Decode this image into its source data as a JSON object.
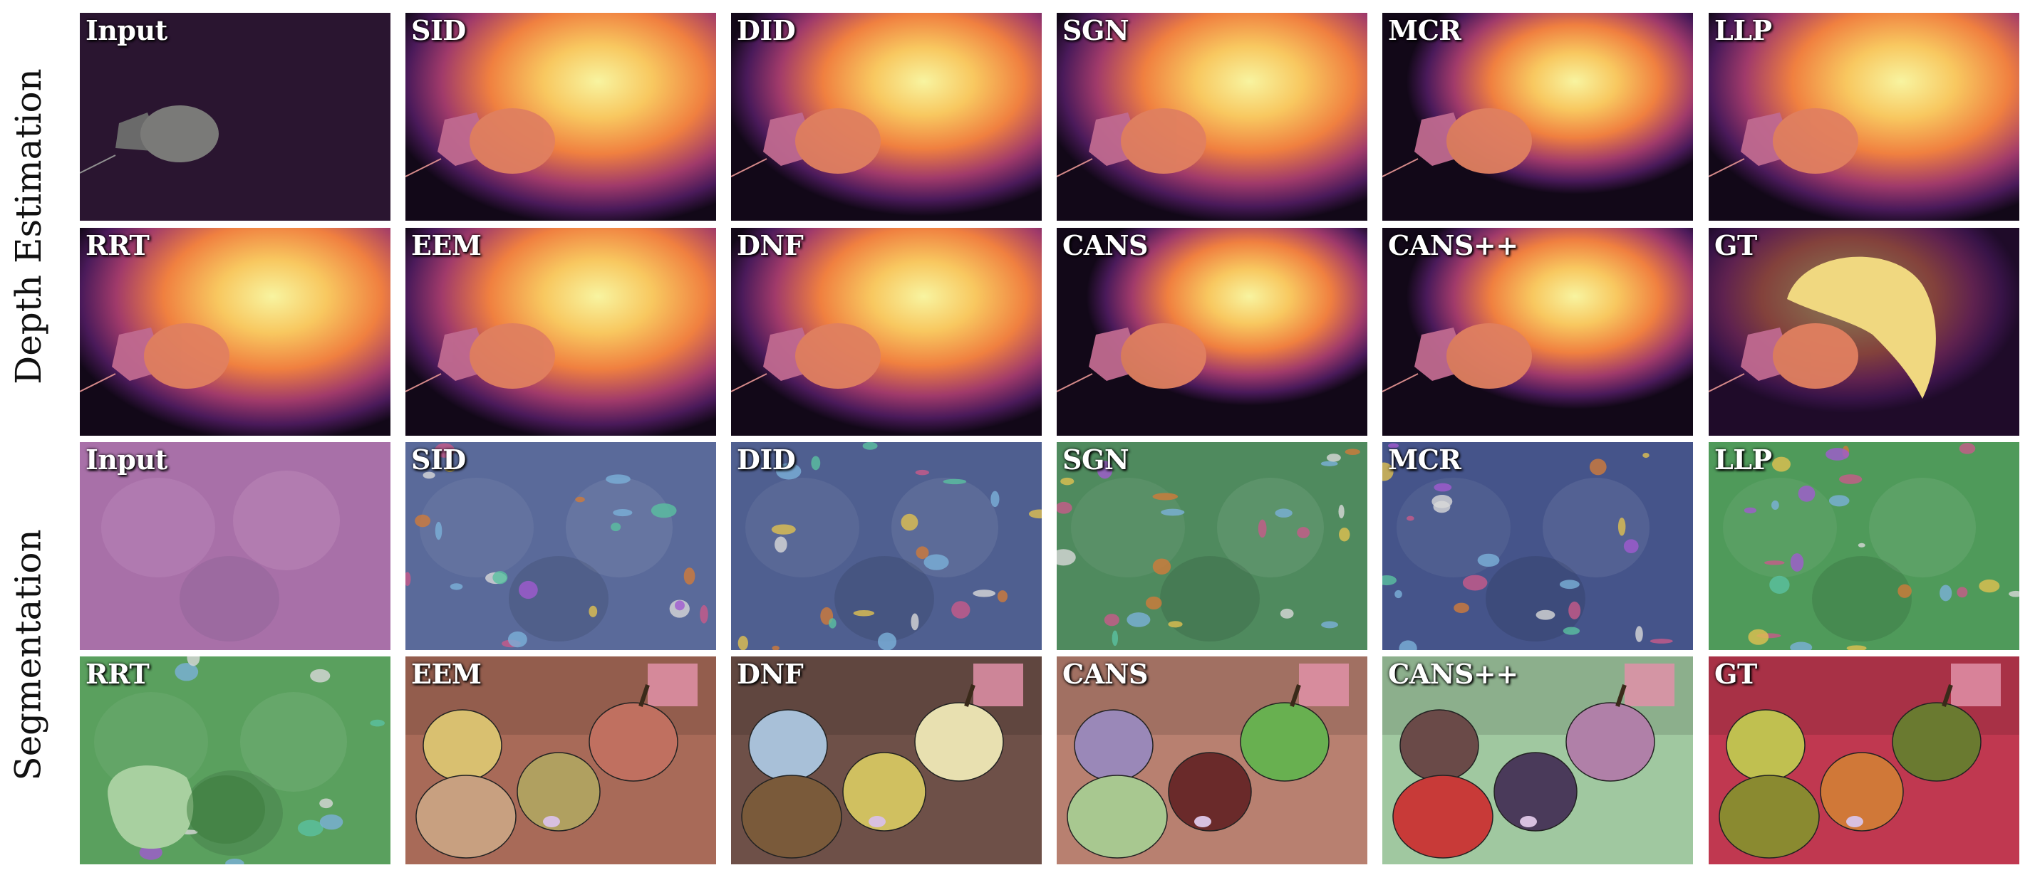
{
  "row_labels": {
    "depth": "Depth Estimation",
    "segmentation": "Segmentation"
  },
  "panels": [
    {
      "label": "Input",
      "kind": "depth-input"
    },
    {
      "label": "SID",
      "kind": "depth",
      "spread": 1.0
    },
    {
      "label": "DID",
      "kind": "depth",
      "spread": 0.85
    },
    {
      "label": "SGN",
      "kind": "depth",
      "spread": 0.95
    },
    {
      "label": "MCR",
      "kind": "depth",
      "spread": 0.55
    },
    {
      "label": "LLP",
      "kind": "depth",
      "spread": 1.0
    },
    {
      "label": "RRT",
      "kind": "depth",
      "spread": 1.0
    },
    {
      "label": "EEM",
      "kind": "depth",
      "spread": 1.0
    },
    {
      "label": "DNF",
      "kind": "depth",
      "spread": 0.9
    },
    {
      "label": "CANS",
      "kind": "depth",
      "spread": 0.5
    },
    {
      "label": "CANS++",
      "kind": "depth",
      "spread": 0.55
    },
    {
      "label": "GT",
      "kind": "depth-gt"
    },
    {
      "label": "Input",
      "kind": "seg-input"
    },
    {
      "label": "SID",
      "kind": "seg-noisy",
      "base": "#5a6a9a"
    },
    {
      "label": "DID",
      "kind": "seg-noisy",
      "base": "#4f5f90"
    },
    {
      "label": "SGN",
      "kind": "seg-noisy",
      "base": "#4f8a5e"
    },
    {
      "label": "MCR",
      "kind": "seg-noisy",
      "base": "#45548a"
    },
    {
      "label": "LLP",
      "kind": "seg-noisy",
      "base": "#4f9a5a"
    },
    {
      "label": "RRT",
      "kind": "seg-green",
      "base": "#5aa05e"
    },
    {
      "label": "EEM",
      "kind": "seg-fruit",
      "colors": [
        "#d9c070",
        "#c8a080",
        "#b0a060",
        "#c07060"
      ],
      "bg": "#a86a58"
    },
    {
      "label": "DNF",
      "kind": "seg-fruit",
      "colors": [
        "#a8c0d8",
        "#7a5a3a",
        "#d0c060",
        "#e8e0b0"
      ],
      "bg": "#6e5048"
    },
    {
      "label": "CANS",
      "kind": "seg-fruit",
      "colors": [
        "#9a88b8",
        "#a8c890",
        "#6a2a2a",
        "#68b050"
      ],
      "bg": "#b88070"
    },
    {
      "label": "CANS++",
      "kind": "seg-fruit",
      "colors": [
        "#6a4a48",
        "#c83a38",
        "#4a3a5a",
        "#b080a8"
      ],
      "bg": "#a0c8a0"
    },
    {
      "label": "GT",
      "kind": "seg-fruit",
      "colors": [
        "#c0c050",
        "#8a8a30",
        "#d07838",
        "#6a7a30"
      ],
      "bg": "#c03850"
    }
  ]
}
